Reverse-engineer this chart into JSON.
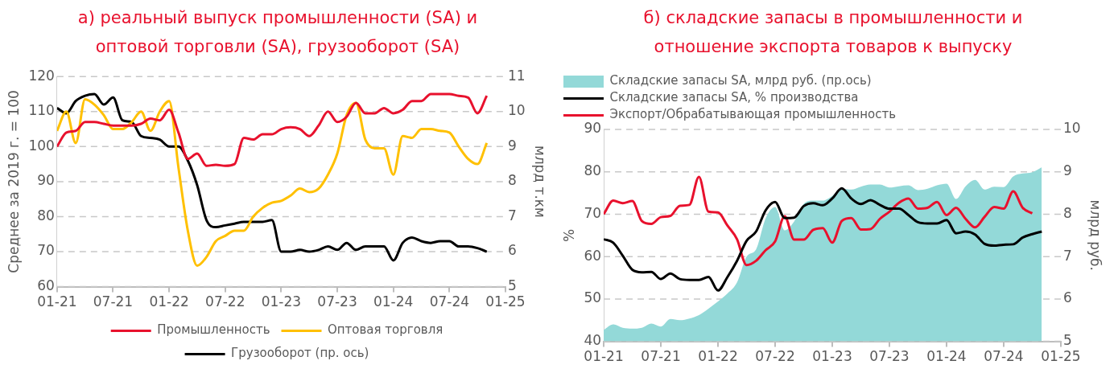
{
  "chart_data": [
    {
      "type": "line",
      "title": "а) реальный выпуск промышленности (SA) и оптовой торговли (SA), грузооборот (SA)",
      "ylabel": "Среднее за 2019 г. = 100",
      "y2label": "млрд т.км",
      "x": [
        "2021-01",
        "2021-02",
        "2021-03",
        "2021-04",
        "2021-05",
        "2021-06",
        "2021-07",
        "2021-08",
        "2021-09",
        "2021-10",
        "2021-11",
        "2021-12",
        "2022-01",
        "2022-02",
        "2022-03",
        "2022-04",
        "2022-05",
        "2022-06",
        "2022-07",
        "2022-08",
        "2022-09",
        "2022-10",
        "2022-11",
        "2022-12",
        "2023-01",
        "2023-02",
        "2023-03",
        "2023-04",
        "2023-05",
        "2023-06",
        "2023-07",
        "2023-08",
        "2023-09",
        "2023-10",
        "2023-11",
        "2023-12",
        "2024-01",
        "2024-02",
        "2024-03",
        "2024-04",
        "2024-05",
        "2024-06",
        "2024-07",
        "2024-08",
        "2024-09",
        "2024-10",
        "2024-11"
      ],
      "xlim": [
        "2021-01",
        "2025-01"
      ],
      "xticks": [
        {
          "value": "2021-01",
          "label": "01-21"
        },
        {
          "value": "2021-07",
          "label": "07-21"
        },
        {
          "value": "2022-01",
          "label": "01-22"
        },
        {
          "value": "2022-07",
          "label": "07-22"
        },
        {
          "value": "2023-01",
          "label": "01-23"
        },
        {
          "value": "2023-07",
          "label": "07-23"
        },
        {
          "value": "2024-01",
          "label": "01-24"
        },
        {
          "value": "2024-07",
          "label": "07-24"
        },
        {
          "value": "2025-01",
          "label": "01-25"
        }
      ],
      "ylim": [
        60,
        120
      ],
      "yticks": [
        60,
        70,
        80,
        90,
        100,
        110,
        120
      ],
      "y2lim": [
        5,
        11
      ],
      "y2ticks": [
        5,
        6,
        7,
        8,
        9,
        10,
        11
      ],
      "grid": "y",
      "legend": "bottom",
      "series": [
        {
          "name": "Промышленность",
          "color": "#e8112d",
          "values": [
            100,
            104,
            104.5,
            107,
            107,
            106.5,
            106,
            106,
            106,
            106.5,
            108,
            107.5,
            110.5,
            104,
            96.5,
            98,
            94.5,
            94.8,
            94.5,
            95,
            102.5,
            102,
            103.5,
            103.5,
            105,
            105.5,
            105,
            103,
            106,
            110,
            107,
            108.5,
            112.5,
            109.5,
            109.5,
            111,
            109.5,
            110.5,
            113,
            113,
            115,
            115,
            115,
            114.5,
            114,
            109.5,
            114.5
          ]
        },
        {
          "name": "Оптовая торговля",
          "color": "#ffc000",
          "values": [
            104.5,
            110,
            101,
            113.5,
            112,
            109,
            105,
            105,
            107,
            110,
            104.5,
            110,
            113,
            94,
            76,
            66,
            68.5,
            73,
            74.5,
            76,
            76,
            80,
            82.5,
            84,
            84.5,
            86,
            88,
            87,
            88,
            92,
            98,
            109,
            112.5,
            102,
            99.5,
            99.5,
            92,
            103,
            102.5,
            105,
            105,
            104.5,
            104,
            100,
            96.5,
            95,
            101
          ]
        },
        {
          "name": "Грузооборот (пр. ось)",
          "color": "#000000",
          "axis": "y2",
          "values": [
            10.1,
            9.95,
            10.3,
            10.45,
            10.5,
            10.2,
            10.4,
            9.75,
            9.7,
            9.3,
            9.25,
            9.2,
            9.0,
            9.0,
            8.6,
            7.9,
            6.9,
            6.7,
            6.75,
            6.8,
            6.85,
            6.85,
            6.85,
            6.9,
            6.0,
            6.0,
            6.05,
            6.0,
            6.05,
            6.15,
            6.05,
            6.25,
            6.05,
            6.15,
            6.15,
            6.15,
            5.75,
            6.25,
            6.4,
            6.3,
            6.25,
            6.3,
            6.3,
            6.15,
            6.15,
            6.1,
            6.0
          ]
        }
      ]
    },
    {
      "type": "line",
      "title": "б) складские запасы в промышленности и отношение экспорта товаров к выпуску",
      "ylabel": "%",
      "y2label": "млрд руб.",
      "x": [
        "2021-01",
        "2021-02",
        "2021-03",
        "2021-04",
        "2021-05",
        "2021-06",
        "2021-07",
        "2021-08",
        "2021-09",
        "2021-10",
        "2021-11",
        "2021-12",
        "2022-01",
        "2022-02",
        "2022-03",
        "2022-04",
        "2022-05",
        "2022-06",
        "2022-07",
        "2022-08",
        "2022-09",
        "2022-10",
        "2022-11",
        "2022-12",
        "2023-01",
        "2023-02",
        "2023-03",
        "2023-04",
        "2023-05",
        "2023-06",
        "2023-07",
        "2023-08",
        "2023-09",
        "2023-10",
        "2023-11",
        "2023-12",
        "2024-01",
        "2024-02",
        "2024-03",
        "2024-04",
        "2024-05",
        "2024-06",
        "2024-07",
        "2024-08",
        "2024-09",
        "2024-10",
        "2024-11"
      ],
      "xlim": [
        "2021-01",
        "2025-01"
      ],
      "xticks": [
        {
          "value": "2021-01",
          "label": "01-21"
        },
        {
          "value": "2021-07",
          "label": "07-21"
        },
        {
          "value": "2022-01",
          "label": "01-22"
        },
        {
          "value": "2022-07",
          "label": "07-22"
        },
        {
          "value": "2023-01",
          "label": "01-23"
        },
        {
          "value": "2023-07",
          "label": "07-23"
        },
        {
          "value": "2024-01",
          "label": "01-24"
        },
        {
          "value": "2024-07",
          "label": "07-24"
        },
        {
          "value": "2025-01",
          "label": "01-25"
        }
      ],
      "ylim": [
        40,
        90
      ],
      "yticks": [
        40,
        50,
        60,
        70,
        80,
        90
      ],
      "y2lim": [
        5,
        10
      ],
      "y2ticks": [
        5,
        6,
        7,
        8,
        9,
        10
      ],
      "grid": "y",
      "legend": "top left",
      "series": [
        {
          "name": "Складские запасы SA, млрд руб. (пр.ось)",
          "type": "area",
          "color": "#93d9d8",
          "axis": "y2",
          "values": [
            5.27,
            5.4,
            5.32,
            5.3,
            5.32,
            5.42,
            5.35,
            5.53,
            5.5,
            5.54,
            5.62,
            5.77,
            5.94,
            6.13,
            6.39,
            7.0,
            7.17,
            7.9,
            8.17,
            7.62,
            7.83,
            8.24,
            8.32,
            8.32,
            8.43,
            8.6,
            8.58,
            8.65,
            8.7,
            8.7,
            8.63,
            8.66,
            8.68,
            8.57,
            8.6,
            8.68,
            8.72,
            8.36,
            8.66,
            8.81,
            8.58,
            8.65,
            8.64,
            8.89,
            8.96,
            8.99,
            9.11
          ]
        },
        {
          "name": "Складские запасы SA, % производства",
          "color": "#000000",
          "values": [
            64.1,
            63.3,
            60.2,
            56.9,
            56.3,
            56.4,
            54.7,
            56.0,
            54.7,
            54.5,
            54.5,
            55.2,
            52.0,
            55.2,
            59.0,
            63.7,
            65.9,
            70.9,
            72.9,
            69.1,
            69.2,
            71.9,
            72.6,
            72.1,
            73.7,
            76.1,
            73.7,
            72.4,
            73.3,
            72.2,
            71.3,
            71.3,
            69.8,
            68.1,
            67.8,
            67.8,
            68.6,
            65.5,
            65.9,
            65.2,
            63.0,
            62.6,
            62.8,
            62.9,
            64.5,
            65.3,
            65.9
          ]
        },
        {
          "name": "Экспорт/Обрабатывающая промышленность",
          "color": "#e8112d",
          "values": [
            70.0,
            73.2,
            72.6,
            73.1,
            68.4,
            67.7,
            69.3,
            69.6,
            72.0,
            72.2,
            78.8,
            70.6,
            70.4,
            67.3,
            64.1,
            58.0,
            59.0,
            61.5,
            63.6,
            69.5,
            64.0,
            64.0,
            66.3,
            66.7,
            63.3,
            68.4,
            69.1,
            66.4,
            66.5,
            68.9,
            70.6,
            72.7,
            73.7,
            71.3,
            71.5,
            72.9,
            69.8,
            71.5,
            68.9,
            66.9,
            69.4,
            71.7,
            71.3,
            75.4,
            71.5,
            70.2,
            null
          ]
        }
      ]
    }
  ]
}
